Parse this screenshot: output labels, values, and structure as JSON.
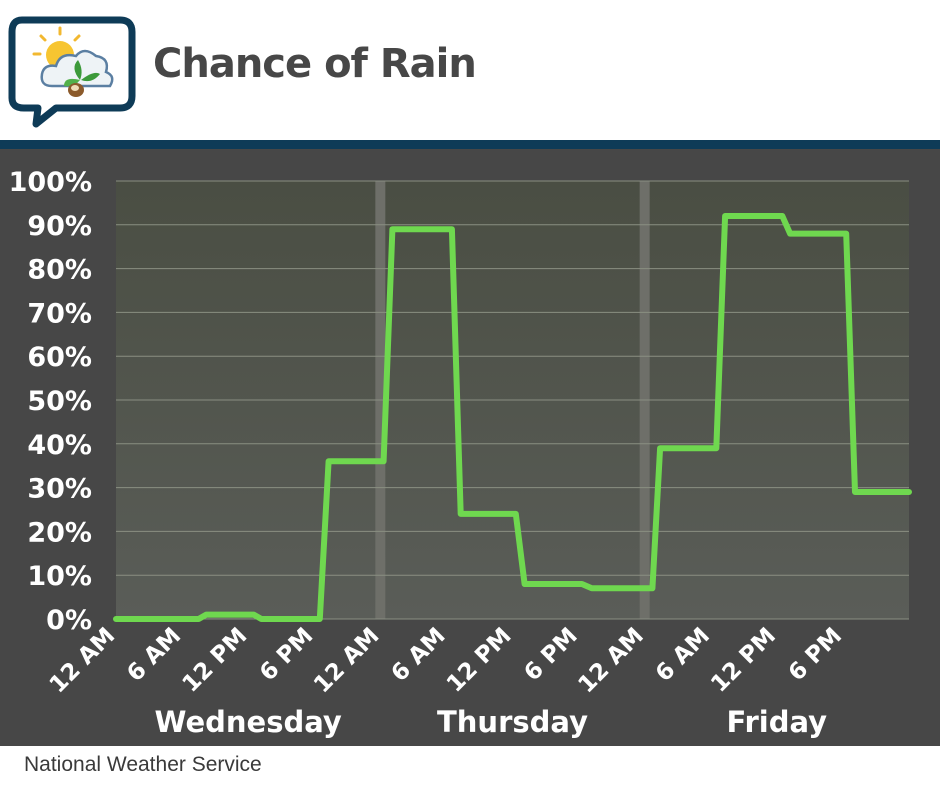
{
  "header": {
    "title": "Chance of Rain"
  },
  "footer": {
    "credit": "National Weather Service"
  },
  "colors": {
    "line": "#6fd84f",
    "panel": "#474747",
    "header_bar": "#0e3b57",
    "grid": "#8a8f82"
  },
  "chart_data": {
    "type": "line",
    "title": "Chance of Rain",
    "xlabel": "",
    "ylabel": "",
    "ylim": [
      0,
      100
    ],
    "y_ticks": [
      "0%",
      "10%",
      "20%",
      "30%",
      "40%",
      "50%",
      "60%",
      "70%",
      "80%",
      "90%",
      "100%"
    ],
    "x_unit": "hours from Wednesday 12 AM",
    "x_ticks": [
      {
        "x": 0,
        "label": "12 AM"
      },
      {
        "x": 6,
        "label": "6 AM"
      },
      {
        "x": 12,
        "label": "12 PM"
      },
      {
        "x": 18,
        "label": "6 PM"
      },
      {
        "x": 24,
        "label": "12 AM"
      },
      {
        "x": 30,
        "label": "6 AM"
      },
      {
        "x": 36,
        "label": "12 PM"
      },
      {
        "x": 42,
        "label": "6 PM"
      },
      {
        "x": 48,
        "label": "12 AM"
      },
      {
        "x": 54,
        "label": "6 AM"
      },
      {
        "x": 60,
        "label": "12 PM"
      },
      {
        "x": 66,
        "label": "6 PM"
      }
    ],
    "day_labels": [
      {
        "x": 12,
        "label": "Wednesday"
      },
      {
        "x": 36,
        "label": "Thursday"
      },
      {
        "x": 60,
        "label": "Friday"
      }
    ],
    "day_dividers": [
      24,
      48
    ],
    "xlim": [
      0,
      72
    ],
    "grid": true,
    "series": [
      {
        "points": [
          [
            0,
            0
          ],
          [
            7.5,
            0
          ],
          [
            8.2,
            1
          ],
          [
            12.5,
            1
          ],
          [
            13.2,
            0
          ],
          [
            18.5,
            0
          ],
          [
            19.3,
            36
          ],
          [
            24.3,
            36
          ],
          [
            25.1,
            89
          ],
          [
            30.5,
            89
          ],
          [
            31.3,
            24
          ],
          [
            36.3,
            24
          ],
          [
            37.1,
            8
          ],
          [
            42.3,
            8
          ],
          [
            43.2,
            7
          ],
          [
            48.7,
            7
          ],
          [
            49.4,
            39
          ],
          [
            54.5,
            39
          ],
          [
            55.3,
            92
          ],
          [
            60.5,
            92
          ],
          [
            61.2,
            88
          ],
          [
            66.3,
            88
          ],
          [
            67.1,
            29
          ],
          [
            72,
            29
          ]
        ]
      }
    ]
  }
}
